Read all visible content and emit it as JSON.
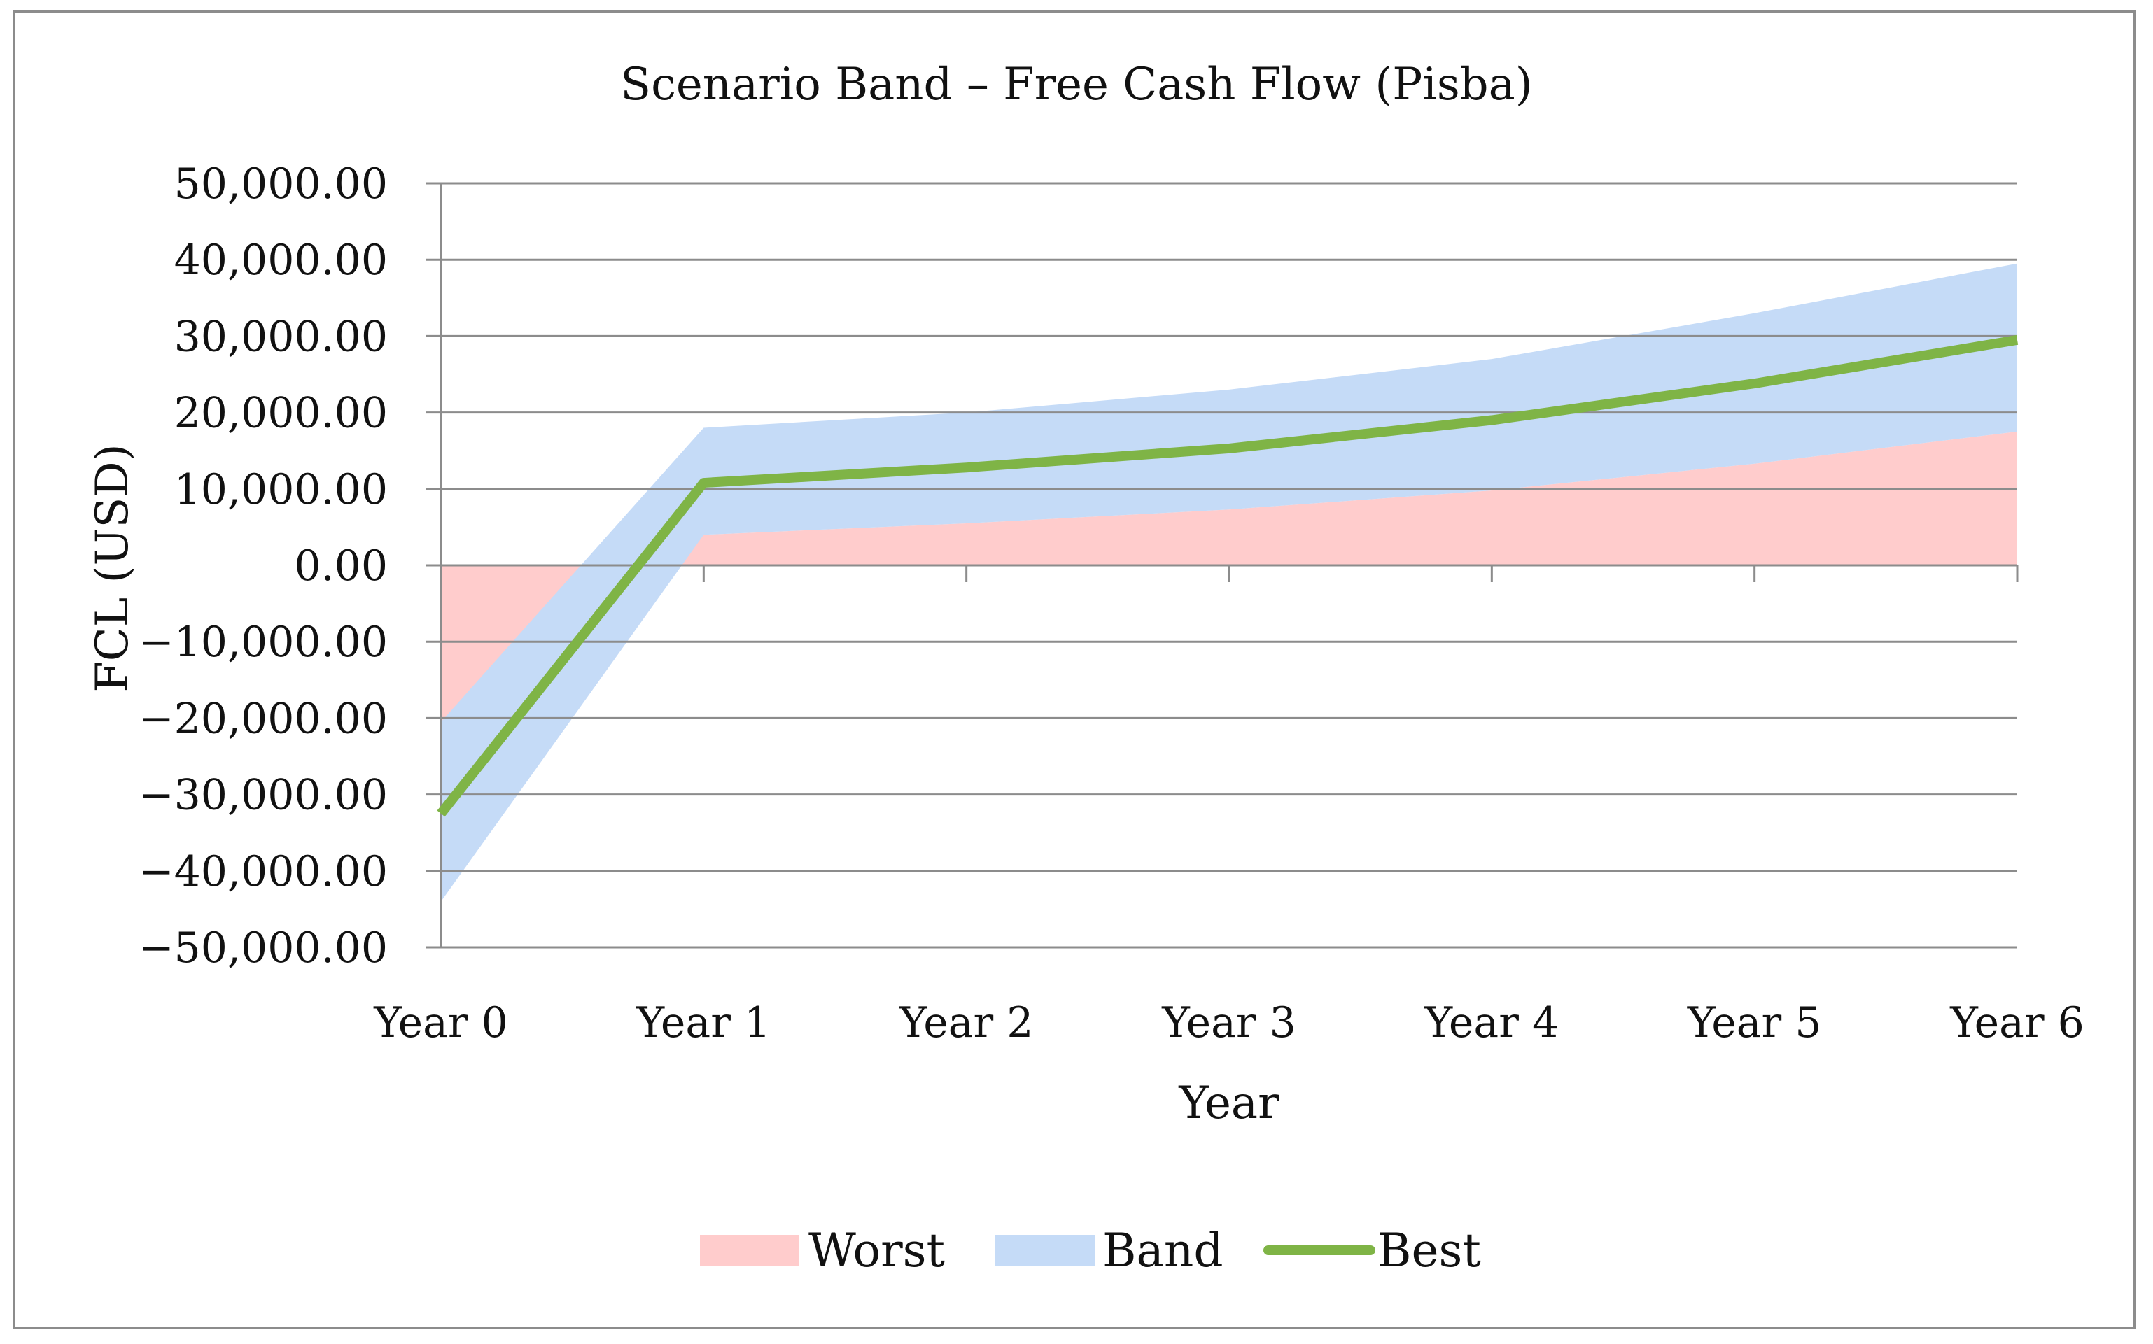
{
  "chart_data": {
    "type": "area",
    "title": "Scenario Band – Free Cash Flow (Pisba)",
    "xlabel": "Year",
    "ylabel": "FCL (USD)",
    "categories": [
      "Year 0",
      "Year 1",
      "Year 2",
      "Year 3",
      "Year 4",
      "Year 5",
      "Year 6"
    ],
    "ylim": [
      -50000,
      50000
    ],
    "y_ticks": [
      50000,
      40000,
      30000,
      20000,
      10000,
      0,
      -10000,
      -20000,
      -30000,
      -40000,
      -50000
    ],
    "y_tick_labels": [
      "50,000.00",
      "40,000.00",
      "30,000.00",
      "20,000.00",
      "10,000.00",
      "0.00",
      "−10,000.00",
      "−20,000.00",
      "−30,000.00",
      "−40,000.00",
      "−50,000.00"
    ],
    "grid": true,
    "legend_position": "bottom",
    "series": [
      {
        "name": "Worst",
        "kind": "area",
        "color": "#ffcccc",
        "values": [
          -20500,
          4000,
          5500,
          7300,
          9800,
          13300,
          17500
        ]
      },
      {
        "name": "Band",
        "kind": "band",
        "color": "#c5dbf7",
        "lower": [
          -44000,
          4000,
          5500,
          7300,
          9800,
          13300,
          17500
        ],
        "upper": [
          -20500,
          18000,
          20000,
          23000,
          27000,
          33000,
          39500
        ]
      },
      {
        "name": "Best",
        "kind": "line",
        "color": "#7fb446",
        "values": [
          -32500,
          10800,
          12800,
          15300,
          19000,
          23800,
          29500
        ]
      }
    ]
  }
}
